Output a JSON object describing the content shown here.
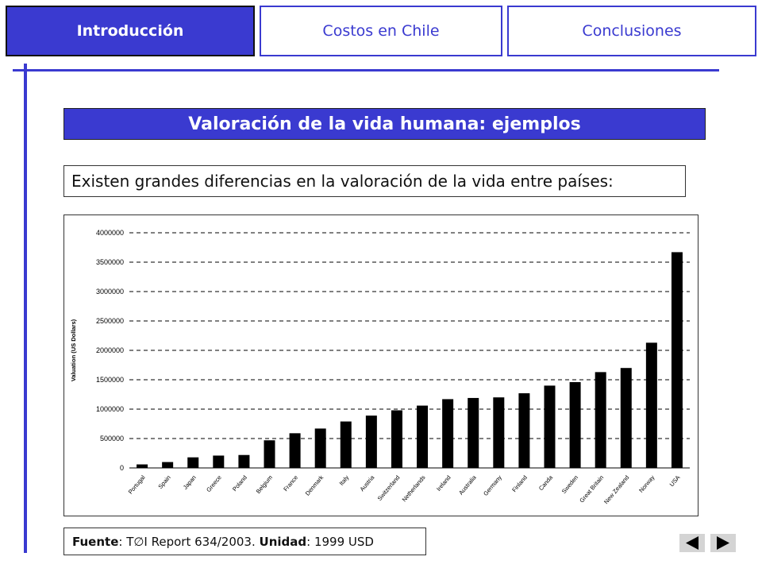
{
  "tabs": [
    {
      "label": "Introducción",
      "active": true
    },
    {
      "label": "Costos en Chile",
      "active": false
    },
    {
      "label": "Conclusiones",
      "active": false
    }
  ],
  "slide": {
    "title": "Valoración de la vida humana: ejemplos",
    "intro_text": "Existen grandes diferencias en la valoración de la vida entre países:"
  },
  "source": {
    "source_label": "Fuente",
    "source_value": ": T∅I Report 634/2003. ",
    "unit_label": "Unidad",
    "unit_value": ": 1999 USD"
  },
  "nav": {
    "prev_icon": "triangle-left-icon",
    "next_icon": "triangle-right-icon"
  },
  "colors": {
    "accent": "#3a3ad0",
    "bar": "#000000",
    "nav_button_bg": "#d4d4d4"
  },
  "chart_data": {
    "type": "bar",
    "categories": [
      "Portugal",
      "Spain",
      "Japan",
      "Greece",
      "Poland",
      "Belgium",
      "France",
      "Denmark",
      "Italy",
      "Austria",
      "Switzerland",
      "Netherlands",
      "Ireland",
      "Australia",
      "Germany",
      "Finland",
      "Canda",
      "Sweden",
      "Great Britain",
      "New Zealand",
      "Norway",
      "USA"
    ],
    "values": [
      60000,
      100000,
      180000,
      210000,
      220000,
      470000,
      590000,
      670000,
      790000,
      890000,
      980000,
      1060000,
      1170000,
      1190000,
      1200000,
      1270000,
      1400000,
      1460000,
      1630000,
      1700000,
      2130000,
      3670000
    ],
    "ylabel": "Valuation (US Dollars)",
    "ylim": [
      0,
      4000000
    ],
    "yticks": [
      0,
      500000,
      1000000,
      1500000,
      2000000,
      2500000,
      3000000,
      3500000,
      4000000
    ],
    "grid": true,
    "grid_style": "dashed"
  }
}
